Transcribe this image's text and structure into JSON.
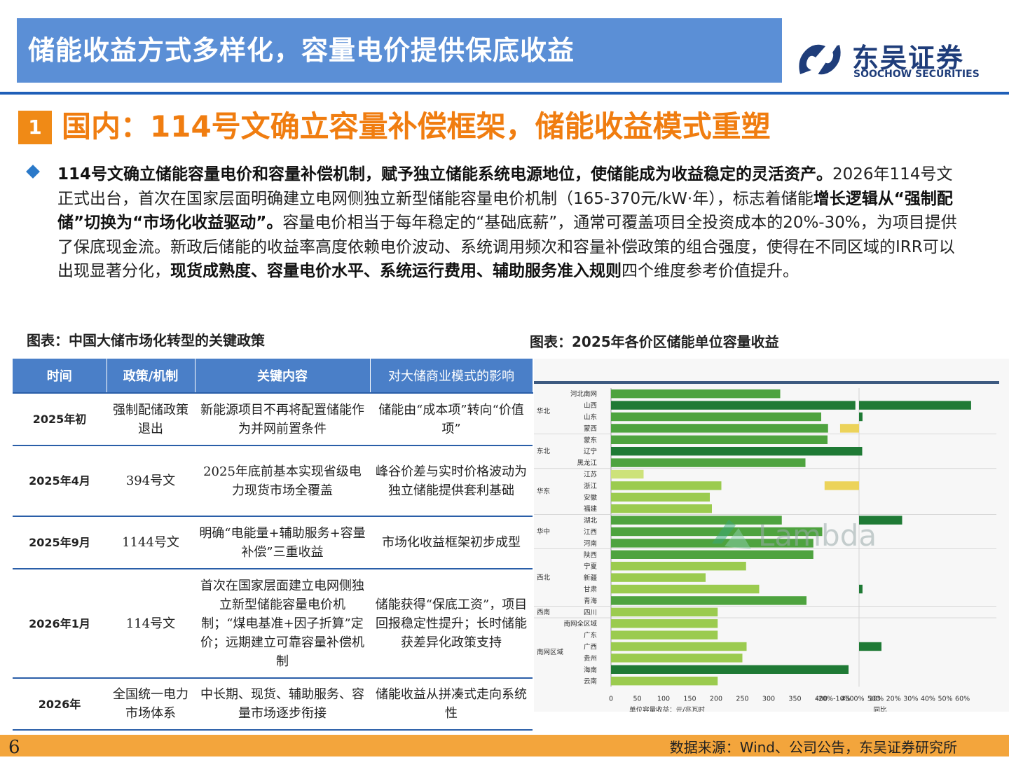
{
  "header": {
    "title": "储能收益方式多样化，容量电价提供保底收益",
    "logo_cn": "东吴证券",
    "logo_en": "SOOCHOW SECURITIES",
    "accent": "#5b8fd6"
  },
  "section": {
    "number": "1",
    "title": "国内：114号文确立容量补偿框架，储能收益模式重塑"
  },
  "paragraph": {
    "p1_bold": "114号文确立储能容量电价和容量补偿机制，赋予独立储能系统电源地位，使储能成为收益稳定的灵活资产。",
    "p2": "2026年114号文正式出台，首次在国家层面明确建立电网侧独立新型储能容量电价机制（165-370元/kW·年），标志着储能",
    "p3_bold": "增长逻辑从“强制配储”切换为“市场化收益驱动”。",
    "p4": "容量电价相当于每年稳定的“基础底薪”，通常可覆盖项目全投资成本的20%-30%，为项目提供了保底现金流。新政后储能的收益率高度依赖电价波动、系统调用频次和容量补偿政策的组合强度，使得在不同区域的IRR可以出现显著分化，",
    "p5_bold": "现货成熟度、容量电价水平、系统运行费用、辅助服务准入规则",
    "p6": "四个维度参考价值提升。"
  },
  "table": {
    "caption": "图表：中国大储市场化转型的关键政策",
    "headers": [
      "时间",
      "政策/机制",
      "关键内容",
      "对大储商业模式的影响"
    ],
    "rows": [
      [
        "2025年初",
        "强制配储政策退出",
        "新能源项目不再将配置储能作为并网前置条件",
        "储能由“成本项”转向“价值项”"
      ],
      [
        "2025年4月",
        "394号文",
        "2025年底前基本实现省级电力现货市场全覆盖",
        "峰谷价差与实时价格波动为独立储能提供套利基础"
      ],
      [
        "2025年9月",
        "1144号文",
        "明确“电能量+辅助服务+容量补偿”三重收益",
        "市场化收益框架初步成型"
      ],
      [
        "2026年1月",
        "114号文",
        "首次在国家层面建立电网侧独立新型储能容量电价机制；“煤电基准+因子折算”定价；远期建立可靠容量补偿机制",
        "储能获得“保底工资”，项目回报稳定性提升；长时储能获差异化政策支持"
      ],
      [
        "2026年",
        "全国统一电力市场体系",
        "中长期、现货、辅助服务、容量市场逐步衔接",
        "储能收益从拼凑式走向系统性"
      ]
    ]
  },
  "chart_data": {
    "type": "bar",
    "title": "图表：2025年各价区储能单位容量收益",
    "regions": [
      {
        "name": "华北",
        "count": 4
      },
      {
        "name": "东北",
        "count": 3
      },
      {
        "name": "华东",
        "count": 4
      },
      {
        "name": "华中",
        "count": 3
      },
      {
        "name": "西北",
        "count": 5
      },
      {
        "name": "西南",
        "count": 1
      },
      {
        "name": "南网区域",
        "count": 6
      }
    ],
    "categories": [
      "河北南网",
      "山西",
      "山东",
      "蒙西",
      "蒙东",
      "辽宁",
      "黑龙江",
      "江苏",
      "浙江",
      "安徽",
      "福建",
      "湖北",
      "江西",
      "河南",
      "陕西",
      "宁夏",
      "新疆",
      "甘肃",
      "青海",
      "四川",
      "南网全区域",
      "广东",
      "广西",
      "贵州",
      "海南",
      "云南"
    ],
    "series": [
      {
        "values": [
          322,
          465,
          400,
          413,
          412,
          478,
          370,
          62,
          210,
          188,
          192,
          325,
          402,
          385,
          385,
          257,
          180,
          282,
          372,
          203,
          203,
          203,
          258,
          250,
          452,
          203
        ]
      },
      {
        "values": [
          null,
          65,
          2,
          -11,
          null,
          null,
          null,
          null,
          -20,
          null,
          null,
          25,
          null,
          null,
          null,
          null,
          null,
          2,
          null,
          null,
          null,
          null,
          13,
          null,
          null,
          null
        ]
      }
    ],
    "xlabel": "单位容量收益：元/兆瓦时",
    "xlabel2": "同比",
    "xlim": [
      0,
      500
    ],
    "xlim2": [
      -20,
      60
    ],
    "xticks": [
      "0",
      "50",
      "100",
      "150",
      "200",
      "250",
      "300",
      "350",
      "400",
      "450",
      "500"
    ],
    "xticks2": [
      "-20%",
      "-10%",
      "0%",
      "10%",
      "20%",
      "30%",
      "40%",
      "50%",
      "60%"
    ],
    "watermark": "Lambda",
    "colors": {
      "dark": "#1f7a35",
      "mid": "#4ea33f",
      "light": "#9bcb4f",
      "pale": "#cde27a",
      "yellow": "#ecd35a"
    }
  },
  "footer": {
    "page": "6",
    "source": "数据来源：Wind、公司公告，东吴证券研究所",
    "bar_color": "#f3a53c"
  }
}
